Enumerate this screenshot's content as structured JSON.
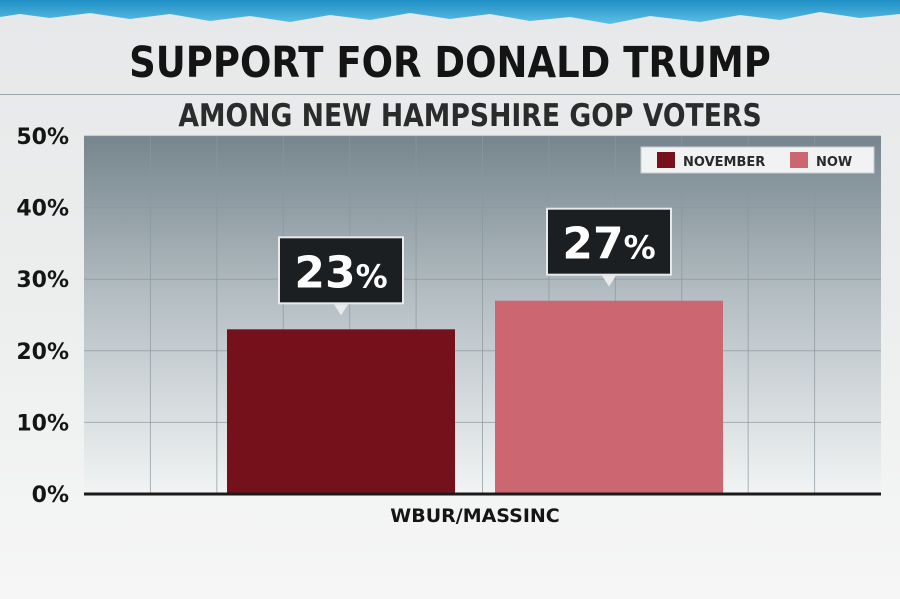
{
  "header": {
    "title": "SUPPORT FOR DONALD TRUMP",
    "subtitle": "AMONG NEW HAMPSHIRE GOP VOTERS"
  },
  "colors": {
    "november": "#74111a",
    "now": "#cc6671",
    "plot_background_top": "#76858d",
    "plot_background_bottom": "#f2f4f4",
    "banner": "#2f9fd0"
  },
  "chart_data": {
    "type": "bar",
    "title": "SUPPORT FOR DONALD TRUMP",
    "subtitle": "AMONG NEW HAMPSHIRE GOP VOTERS",
    "categories": [
      "WBUR/MASSINC"
    ],
    "series": [
      {
        "name": "NOVEMBER",
        "values": [
          23
        ],
        "label": "23%",
        "color": "#74111a"
      },
      {
        "name": "NOW",
        "values": [
          27
        ],
        "label": "27%",
        "color": "#cc6671"
      }
    ],
    "ylim": [
      0,
      50
    ],
    "yticks": [
      0,
      10,
      20,
      30,
      40,
      50
    ],
    "ytick_labels": [
      "0%",
      "10%",
      "20%",
      "30%",
      "40%",
      "50%"
    ],
    "grid": true,
    "legend": "top-right"
  }
}
